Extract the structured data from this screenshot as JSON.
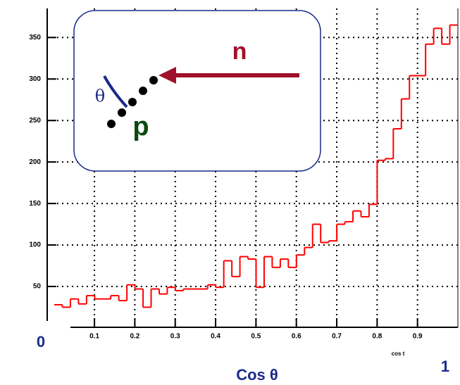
{
  "chart_data": {
    "type": "histogram",
    "bins": [
      0,
      0.02,
      0.04,
      0.06,
      0.08,
      0.1,
      0.12,
      0.14,
      0.16,
      0.18,
      0.2,
      0.22,
      0.24,
      0.26,
      0.28,
      0.3,
      0.32,
      0.34,
      0.36,
      0.38,
      0.4,
      0.42,
      0.44,
      0.46,
      0.48,
      0.5,
      0.52,
      0.54,
      0.56,
      0.58,
      0.6,
      0.62,
      0.64,
      0.66,
      0.68,
      0.7,
      0.72,
      0.74,
      0.76,
      0.78,
      0.8,
      0.82,
      0.84,
      0.86,
      0.88,
      0.9,
      0.92,
      0.94,
      0.96,
      0.98,
      1
    ],
    "values": [
      28,
      25,
      35,
      29,
      39,
      35,
      35,
      39,
      33,
      52,
      47,
      25,
      47,
      41,
      49,
      45,
      47,
      47,
      47,
      52,
      49,
      81,
      62,
      86,
      83,
      49,
      86,
      73,
      83,
      73,
      88,
      97,
      125,
      103,
      105,
      125,
      128,
      141,
      134,
      149,
      202,
      204,
      240,
      276,
      304,
      304,
      342,
      361,
      342,
      365
    ],
    "color": "#ff0000",
    "xlim": [
      -0.017,
      1.0
    ],
    "ylim": [
      0,
      385
    ],
    "xticks": [
      0.1,
      0.2,
      0.3,
      0.4,
      0.5,
      0.6,
      0.7,
      0.8,
      0.9
    ],
    "yticks": [
      50,
      100,
      150,
      200,
      250,
      300,
      350
    ],
    "grid": true,
    "x_axis_label": "cos t",
    "x_start_label": "0",
    "x_end_label": "1",
    "x_title": "Cos θ",
    "inset": {
      "neutron_label": "n",
      "proton_label": "p",
      "angle_label": "θ"
    }
  }
}
